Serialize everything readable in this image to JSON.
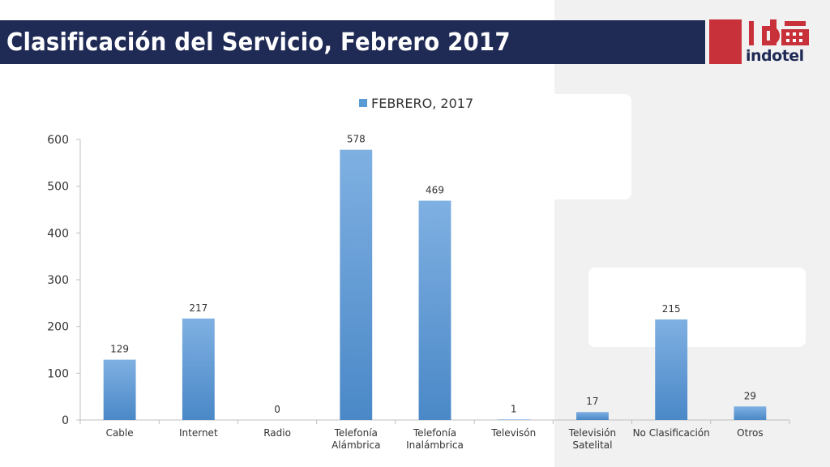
{
  "header": {
    "title": "Clasificación del Servicio, Febrero 2017"
  },
  "logo": {
    "mark": "id",
    "name": "indotel",
    "colors": {
      "red": "#c8313a",
      "navy": "#1f2a55"
    }
  },
  "chart_data": {
    "type": "bar",
    "title": "",
    "xlabel": "",
    "ylabel": "",
    "ylim": [
      0,
      600
    ],
    "yticks": [
      0,
      100,
      200,
      300,
      400,
      500,
      600
    ],
    "legend": {
      "position": "top-center"
    },
    "grid": false,
    "categories": [
      [
        "Cable"
      ],
      [
        "Internet"
      ],
      [
        "Radio"
      ],
      [
        "Telefonía",
        "Alámbrica"
      ],
      [
        "Telefonía",
        "Inalámbrica"
      ],
      [
        "Televisón"
      ],
      [
        "Televisión",
        "Satelital"
      ],
      [
        "No Clasificación"
      ],
      [
        "Otros"
      ]
    ],
    "series": [
      {
        "name": "FEBRERO, 2017",
        "color": "#5b9bd5",
        "values": [
          129,
          217,
          0,
          578,
          469,
          1,
          17,
          215,
          29
        ]
      }
    ]
  }
}
